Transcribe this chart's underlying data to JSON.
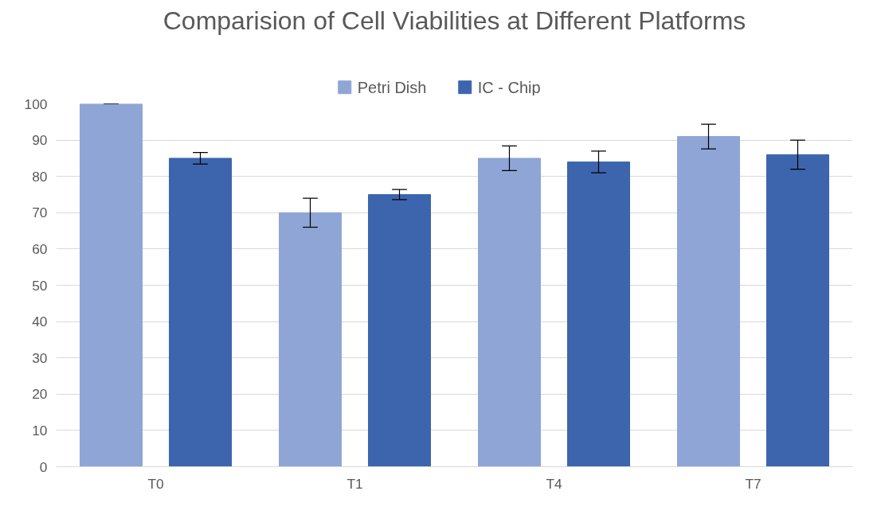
{
  "chart_data": {
    "type": "bar",
    "title": "Comparision of Cell Viabilities at Different Platforms",
    "categories": [
      "T0",
      "T1",
      "T4",
      "T7"
    ],
    "series": [
      {
        "name": "Petri Dish",
        "color": "#8fa5d6",
        "values": [
          100,
          70,
          85,
          91
        ],
        "errors": [
          0,
          4,
          3.4,
          3.4
        ]
      },
      {
        "name": "IC - Chip",
        "color": "#3c65ad",
        "values": [
          85,
          75,
          84,
          86
        ],
        "errors": [
          1.6,
          1.4,
          3,
          4
        ]
      }
    ],
    "ylim": [
      0,
      100
    ],
    "yticks": [
      0,
      10,
      20,
      30,
      40,
      50,
      60,
      70,
      80,
      90,
      100
    ],
    "grid": "y",
    "legend": "top"
  }
}
